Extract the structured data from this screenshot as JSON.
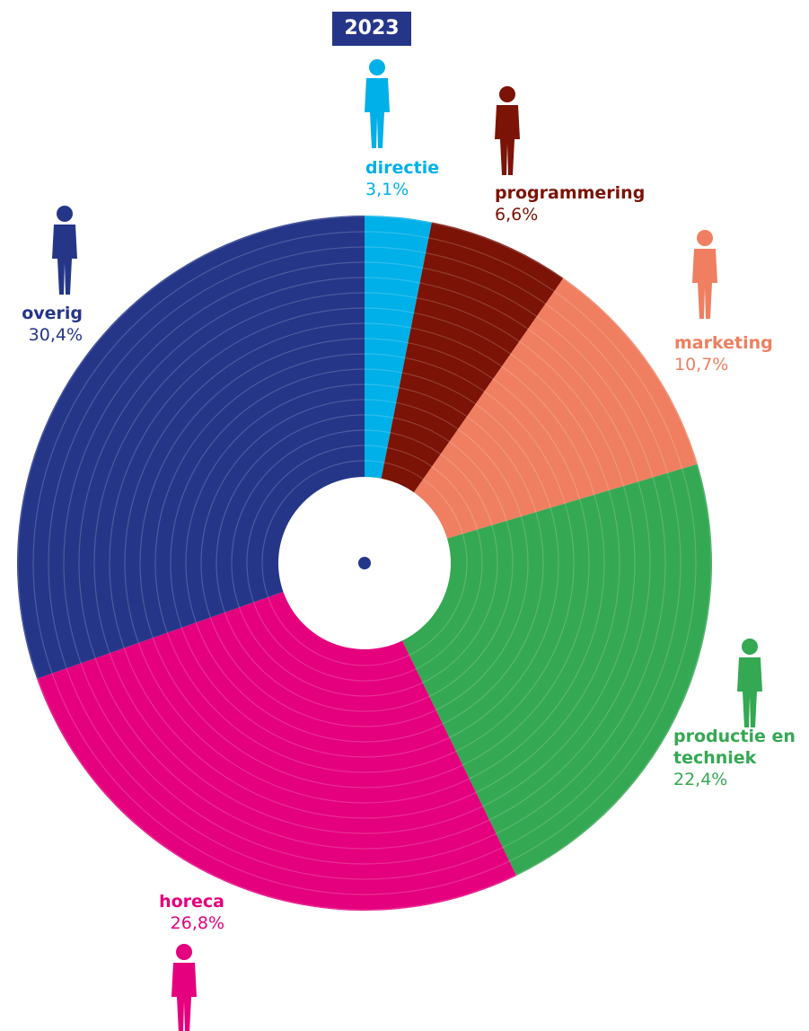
{
  "chart_data": {
    "type": "donut",
    "title": "2023",
    "categories": [
      "directie",
      "programmering",
      "marketing",
      "productie en techniek",
      "horeca",
      "overig"
    ],
    "values": [
      3.1,
      6.6,
      10.7,
      22.4,
      26.8,
      30.4
    ],
    "value_labels": [
      "3,1%",
      "6,6%",
      "10,7%",
      "22,4%",
      "26,8%",
      "30,4%"
    ],
    "colors": [
      "#00b0e8",
      "#7b1306",
      "#ef7f60",
      "#35a853",
      "#e5007e",
      "#253689"
    ]
  }
}
